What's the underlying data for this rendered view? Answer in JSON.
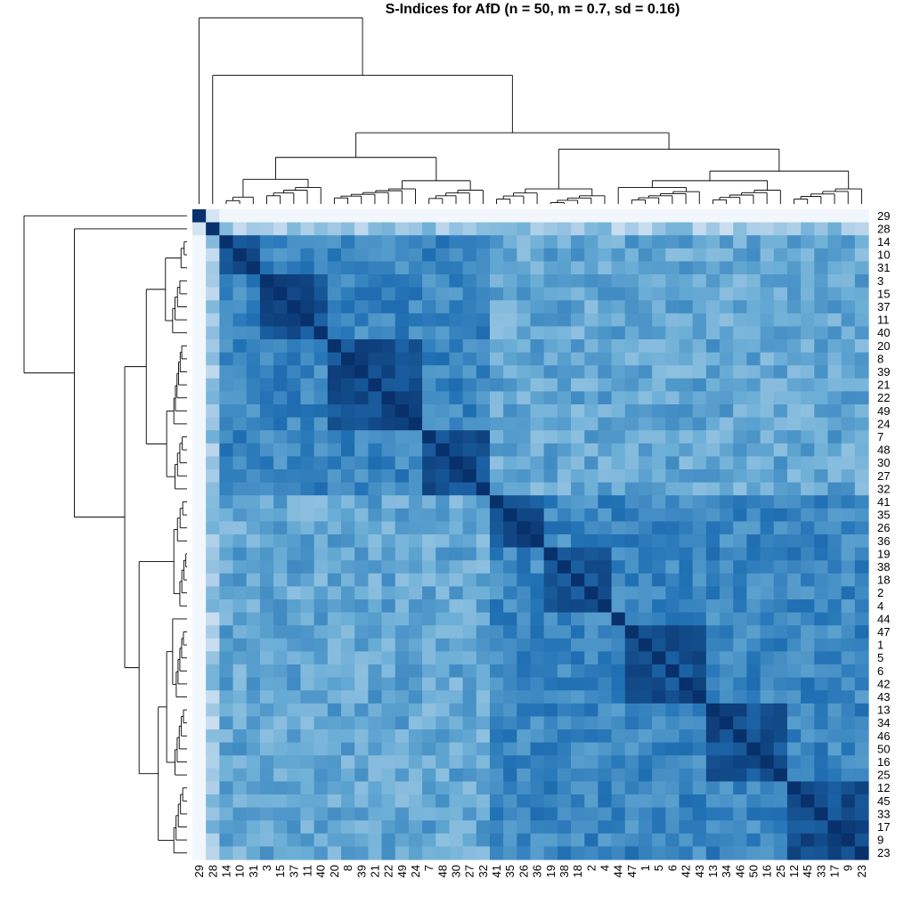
{
  "chart_data": {
    "type": "heatmap",
    "title": "S-Indices for AfD (n = 50, m = 0.7, sd = 0.16)",
    "order": [
      "29",
      "28",
      "14",
      "10",
      "31",
      "3",
      "15",
      "37",
      "11",
      "40",
      "20",
      "8",
      "39",
      "21",
      "22",
      "49",
      "24",
      "7",
      "48",
      "30",
      "27",
      "32",
      "41",
      "35",
      "26",
      "36",
      "19",
      "38",
      "18",
      "2",
      "4",
      "44",
      "47",
      "1",
      "5",
      "6",
      "42",
      "43",
      "13",
      "34",
      "46",
      "50",
      "16",
      "25",
      "12",
      "45",
      "33",
      "17",
      "9",
      "23"
    ],
    "row_dendrogram": true,
    "column_dendrogram": true,
    "colormap": [
      "#f7fbff",
      "#c6dbef",
      "#6baed6",
      "#2171b5",
      "#08306b"
    ],
    "value_range": [
      0,
      1
    ],
    "grid": false,
    "legend": "none",
    "notes": "Symmetric similarity matrix with unit diagonal; off-diagonal values estimated from colour"
  }
}
